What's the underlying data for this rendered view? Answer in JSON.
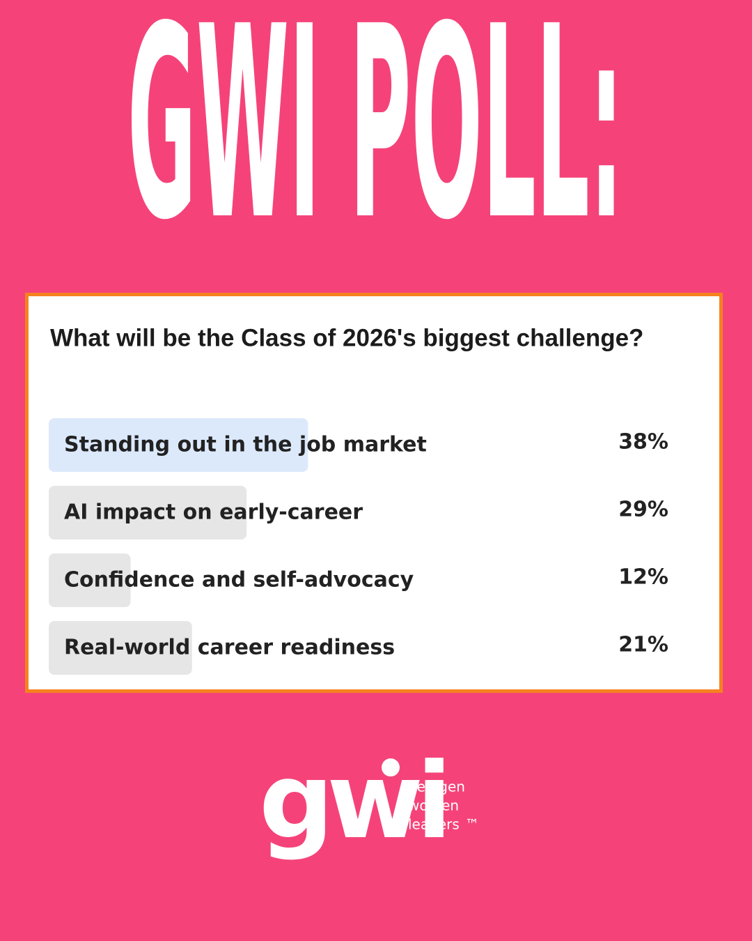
{
  "header": {
    "title": "GWI POLL:"
  },
  "chart_data": {
    "type": "poll",
    "title": "What will be the Class of 2026's biggest challenge?",
    "categories": [
      "Standing out in the job market",
      "AI impact on early-career",
      "Confidence and self-advocacy",
      "Real-world career readiness"
    ],
    "values": [
      38,
      29,
      12,
      21
    ],
    "value_labels": [
      "38%",
      "29%",
      "12%",
      "21%"
    ],
    "colors": [
      "#dce9fb",
      "#e6e6e6",
      "#e6e6e6",
      "#e6e6e6"
    ]
  },
  "logo": {
    "mark": "gwi",
    "tagline": [
      "nextgen",
      "women",
      "leaders"
    ],
    "trademark": "™"
  }
}
